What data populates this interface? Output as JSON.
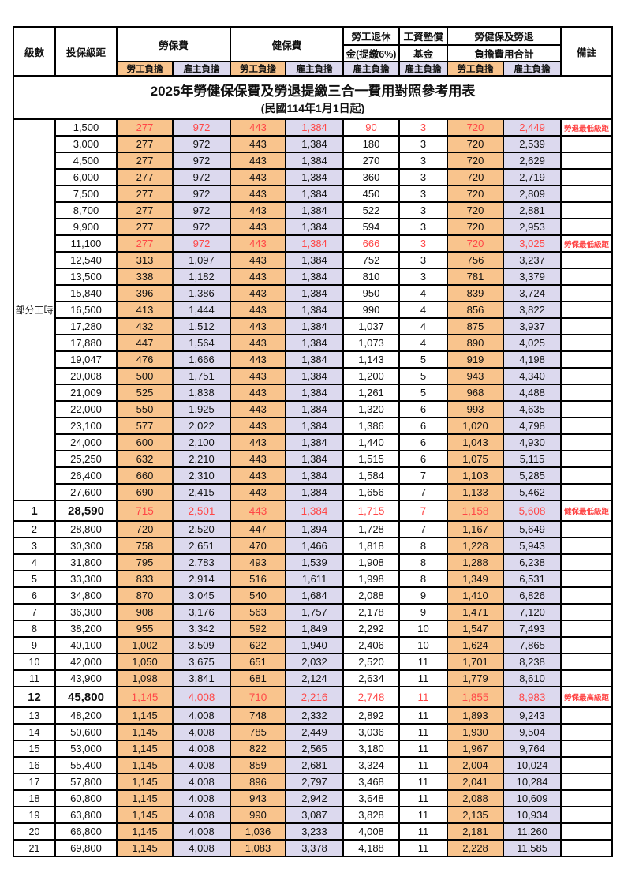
{
  "title": "2025年勞健保保費及勞退提繳三合一費用對照參考用表",
  "subtitle": "(民國114年1月1日起)",
  "headers": {
    "level": "級數",
    "salary": "投保級距",
    "labor_insurance": "勞保費",
    "health_insurance": "健保費",
    "pension_line1": "勞工退休",
    "pension_line2": "金(提繳6%)",
    "wage_fund_line1": "工資墊償",
    "wage_fund_line2": "基金",
    "total_line1": "勞健保及勞退",
    "total_line2": "負擔費用合計",
    "employee": "勞工負擔",
    "employer": "雇主負擔",
    "remark": "備註"
  },
  "part_time_label": "部分工時",
  "colors": {
    "employee_bg": "#F9C48D",
    "employer_bg": "#DCD9EE",
    "highlight_text": "#FF4747",
    "border": "#000000"
  },
  "rows": [
    {
      "level": "",
      "salary": "1,500",
      "labor_emp": "277",
      "labor_er": "972",
      "health_emp": "443",
      "health_er": "1,384",
      "pension_er": "90",
      "fund_er": "3",
      "total_emp": "720",
      "total_er": "2,449",
      "remark": "勞退最低級距",
      "red": true
    },
    {
      "level": "",
      "salary": "3,000",
      "labor_emp": "277",
      "labor_er": "972",
      "health_emp": "443",
      "health_er": "1,384",
      "pension_er": "180",
      "fund_er": "3",
      "total_emp": "720",
      "total_er": "2,539",
      "remark": ""
    },
    {
      "level": "",
      "salary": "4,500",
      "labor_emp": "277",
      "labor_er": "972",
      "health_emp": "443",
      "health_er": "1,384",
      "pension_er": "270",
      "fund_er": "3",
      "total_emp": "720",
      "total_er": "2,629",
      "remark": ""
    },
    {
      "level": "",
      "salary": "6,000",
      "labor_emp": "277",
      "labor_er": "972",
      "health_emp": "443",
      "health_er": "1,384",
      "pension_er": "360",
      "fund_er": "3",
      "total_emp": "720",
      "total_er": "2,719",
      "remark": ""
    },
    {
      "level": "",
      "salary": "7,500",
      "labor_emp": "277",
      "labor_er": "972",
      "health_emp": "443",
      "health_er": "1,384",
      "pension_er": "450",
      "fund_er": "3",
      "total_emp": "720",
      "total_er": "2,809",
      "remark": ""
    },
    {
      "level": "",
      "salary": "8,700",
      "labor_emp": "277",
      "labor_er": "972",
      "health_emp": "443",
      "health_er": "1,384",
      "pension_er": "522",
      "fund_er": "3",
      "total_emp": "720",
      "total_er": "2,881",
      "remark": ""
    },
    {
      "level": "",
      "salary": "9,900",
      "labor_emp": "277",
      "labor_er": "972",
      "health_emp": "443",
      "health_er": "1,384",
      "pension_er": "594",
      "fund_er": "3",
      "total_emp": "720",
      "total_er": "2,953",
      "remark": ""
    },
    {
      "level": "",
      "salary": "11,100",
      "labor_emp": "277",
      "labor_er": "972",
      "health_emp": "443",
      "health_er": "1,384",
      "pension_er": "666",
      "fund_er": "3",
      "total_emp": "720",
      "total_er": "3,025",
      "remark": "勞保最低級距",
      "red": true
    },
    {
      "level": "",
      "salary": "12,540",
      "labor_emp": "313",
      "labor_er": "1,097",
      "health_emp": "443",
      "health_er": "1,384",
      "pension_er": "752",
      "fund_er": "3",
      "total_emp": "756",
      "total_er": "3,237",
      "remark": ""
    },
    {
      "level": "",
      "salary": "13,500",
      "labor_emp": "338",
      "labor_er": "1,182",
      "health_emp": "443",
      "health_er": "1,384",
      "pension_er": "810",
      "fund_er": "3",
      "total_emp": "781",
      "total_er": "3,379",
      "remark": ""
    },
    {
      "level": "",
      "salary": "15,840",
      "labor_emp": "396",
      "labor_er": "1,386",
      "health_emp": "443",
      "health_er": "1,384",
      "pension_er": "950",
      "fund_er": "4",
      "total_emp": "839",
      "total_er": "3,724",
      "remark": ""
    },
    {
      "level": "",
      "salary": "16,500",
      "labor_emp": "413",
      "labor_er": "1,444",
      "health_emp": "443",
      "health_er": "1,384",
      "pension_er": "990",
      "fund_er": "4",
      "total_emp": "856",
      "total_er": "3,822",
      "remark": ""
    },
    {
      "level": "",
      "salary": "17,280",
      "labor_emp": "432",
      "labor_er": "1,512",
      "health_emp": "443",
      "health_er": "1,384",
      "pension_er": "1,037",
      "fund_er": "4",
      "total_emp": "875",
      "total_er": "3,937",
      "remark": ""
    },
    {
      "level": "",
      "salary": "17,880",
      "labor_emp": "447",
      "labor_er": "1,564",
      "health_emp": "443",
      "health_er": "1,384",
      "pension_er": "1,073",
      "fund_er": "4",
      "total_emp": "890",
      "total_er": "4,025",
      "remark": ""
    },
    {
      "level": "",
      "salary": "19,047",
      "labor_emp": "476",
      "labor_er": "1,666",
      "health_emp": "443",
      "health_er": "1,384",
      "pension_er": "1,143",
      "fund_er": "5",
      "total_emp": "919",
      "total_er": "4,198",
      "remark": ""
    },
    {
      "level": "",
      "salary": "20,008",
      "labor_emp": "500",
      "labor_er": "1,751",
      "health_emp": "443",
      "health_er": "1,384",
      "pension_er": "1,200",
      "fund_er": "5",
      "total_emp": "943",
      "total_er": "4,340",
      "remark": ""
    },
    {
      "level": "",
      "salary": "21,009",
      "labor_emp": "525",
      "labor_er": "1,838",
      "health_emp": "443",
      "health_er": "1,384",
      "pension_er": "1,261",
      "fund_er": "5",
      "total_emp": "968",
      "total_er": "4,488",
      "remark": ""
    },
    {
      "level": "",
      "salary": "22,000",
      "labor_emp": "550",
      "labor_er": "1,925",
      "health_emp": "443",
      "health_er": "1,384",
      "pension_er": "1,320",
      "fund_er": "6",
      "total_emp": "993",
      "total_er": "4,635",
      "remark": ""
    },
    {
      "level": "",
      "salary": "23,100",
      "labor_emp": "577",
      "labor_er": "2,022",
      "health_emp": "443",
      "health_er": "1,384",
      "pension_er": "1,386",
      "fund_er": "6",
      "total_emp": "1,020",
      "total_er": "4,798",
      "remark": ""
    },
    {
      "level": "",
      "salary": "24,000",
      "labor_emp": "600",
      "labor_er": "2,100",
      "health_emp": "443",
      "health_er": "1,384",
      "pension_er": "1,440",
      "fund_er": "6",
      "total_emp": "1,043",
      "total_er": "4,930",
      "remark": ""
    },
    {
      "level": "",
      "salary": "25,250",
      "labor_emp": "632",
      "labor_er": "2,210",
      "health_emp": "443",
      "health_er": "1,384",
      "pension_er": "1,515",
      "fund_er": "6",
      "total_emp": "1,075",
      "total_er": "5,115",
      "remark": ""
    },
    {
      "level": "",
      "salary": "26,400",
      "labor_emp": "660",
      "labor_er": "2,310",
      "health_emp": "443",
      "health_er": "1,384",
      "pension_er": "1,584",
      "fund_er": "7",
      "total_emp": "1,103",
      "total_er": "5,285",
      "remark": ""
    },
    {
      "level": "",
      "salary": "27,600",
      "labor_emp": "690",
      "labor_er": "2,415",
      "health_emp": "443",
      "health_er": "1,384",
      "pension_er": "1,656",
      "fund_er": "7",
      "total_emp": "1,133",
      "total_er": "5,462",
      "remark": ""
    },
    {
      "level": "1",
      "salary": "28,590",
      "labor_emp": "715",
      "labor_er": "2,501",
      "health_emp": "443",
      "health_er": "1,384",
      "pension_er": "1,715",
      "fund_er": "7",
      "total_emp": "1,158",
      "total_er": "5,608",
      "remark": "健保最低級距",
      "red": true,
      "big": true
    },
    {
      "level": "2",
      "salary": "28,800",
      "labor_emp": "720",
      "labor_er": "2,520",
      "health_emp": "447",
      "health_er": "1,394",
      "pension_er": "1,728",
      "fund_er": "7",
      "total_emp": "1,167",
      "total_er": "5,649",
      "remark": ""
    },
    {
      "level": "3",
      "salary": "30,300",
      "labor_emp": "758",
      "labor_er": "2,651",
      "health_emp": "470",
      "health_er": "1,466",
      "pension_er": "1,818",
      "fund_er": "8",
      "total_emp": "1,228",
      "total_er": "5,943",
      "remark": ""
    },
    {
      "level": "4",
      "salary": "31,800",
      "labor_emp": "795",
      "labor_er": "2,783",
      "health_emp": "493",
      "health_er": "1,539",
      "pension_er": "1,908",
      "fund_er": "8",
      "total_emp": "1,288",
      "total_er": "6,238",
      "remark": ""
    },
    {
      "level": "5",
      "salary": "33,300",
      "labor_emp": "833",
      "labor_er": "2,914",
      "health_emp": "516",
      "health_er": "1,611",
      "pension_er": "1,998",
      "fund_er": "8",
      "total_emp": "1,349",
      "total_er": "6,531",
      "remark": ""
    },
    {
      "level": "6",
      "salary": "34,800",
      "labor_emp": "870",
      "labor_er": "3,045",
      "health_emp": "540",
      "health_er": "1,684",
      "pension_er": "2,088",
      "fund_er": "9",
      "total_emp": "1,410",
      "total_er": "6,826",
      "remark": ""
    },
    {
      "level": "7",
      "salary": "36,300",
      "labor_emp": "908",
      "labor_er": "3,176",
      "health_emp": "563",
      "health_er": "1,757",
      "pension_er": "2,178",
      "fund_er": "9",
      "total_emp": "1,471",
      "total_er": "7,120",
      "remark": ""
    },
    {
      "level": "8",
      "salary": "38,200",
      "labor_emp": "955",
      "labor_er": "3,342",
      "health_emp": "592",
      "health_er": "1,849",
      "pension_er": "2,292",
      "fund_er": "10",
      "total_emp": "1,547",
      "total_er": "7,493",
      "remark": ""
    },
    {
      "level": "9",
      "salary": "40,100",
      "labor_emp": "1,002",
      "labor_er": "3,509",
      "health_emp": "622",
      "health_er": "1,940",
      "pension_er": "2,406",
      "fund_er": "10",
      "total_emp": "1,624",
      "total_er": "7,865",
      "remark": ""
    },
    {
      "level": "10",
      "salary": "42,000",
      "labor_emp": "1,050",
      "labor_er": "3,675",
      "health_emp": "651",
      "health_er": "2,032",
      "pension_er": "2,520",
      "fund_er": "11",
      "total_emp": "1,701",
      "total_er": "8,238",
      "remark": ""
    },
    {
      "level": "11",
      "salary": "43,900",
      "labor_emp": "1,098",
      "labor_er": "3,841",
      "health_emp": "681",
      "health_er": "2,124",
      "pension_er": "2,634",
      "fund_er": "11",
      "total_emp": "1,779",
      "total_er": "8,610",
      "remark": ""
    },
    {
      "level": "12",
      "salary": "45,800",
      "labor_emp": "1,145",
      "labor_er": "4,008",
      "health_emp": "710",
      "health_er": "2,216",
      "pension_er": "2,748",
      "fund_er": "11",
      "total_emp": "1,855",
      "total_er": "8,983",
      "remark": "勞保最高級距",
      "red": true,
      "big": true
    },
    {
      "level": "13",
      "salary": "48,200",
      "labor_emp": "1,145",
      "labor_er": "4,008",
      "health_emp": "748",
      "health_er": "2,332",
      "pension_er": "2,892",
      "fund_er": "11",
      "total_emp": "1,893",
      "total_er": "9,243",
      "remark": ""
    },
    {
      "level": "14",
      "salary": "50,600",
      "labor_emp": "1,145",
      "labor_er": "4,008",
      "health_emp": "785",
      "health_er": "2,449",
      "pension_er": "3,036",
      "fund_er": "11",
      "total_emp": "1,930",
      "total_er": "9,504",
      "remark": ""
    },
    {
      "level": "15",
      "salary": "53,000",
      "labor_emp": "1,145",
      "labor_er": "4,008",
      "health_emp": "822",
      "health_er": "2,565",
      "pension_er": "3,180",
      "fund_er": "11",
      "total_emp": "1,967",
      "total_er": "9,764",
      "remark": ""
    },
    {
      "level": "16",
      "salary": "55,400",
      "labor_emp": "1,145",
      "labor_er": "4,008",
      "health_emp": "859",
      "health_er": "2,681",
      "pension_er": "3,324",
      "fund_er": "11",
      "total_emp": "2,004",
      "total_er": "10,024",
      "remark": ""
    },
    {
      "level": "17",
      "salary": "57,800",
      "labor_emp": "1,145",
      "labor_er": "4,008",
      "health_emp": "896",
      "health_er": "2,797",
      "pension_er": "3,468",
      "fund_er": "11",
      "total_emp": "2,041",
      "total_er": "10,284",
      "remark": ""
    },
    {
      "level": "18",
      "salary": "60,800",
      "labor_emp": "1,145",
      "labor_er": "4,008",
      "health_emp": "943",
      "health_er": "2,942",
      "pension_er": "3,648",
      "fund_er": "11",
      "total_emp": "2,088",
      "total_er": "10,609",
      "remark": ""
    },
    {
      "level": "19",
      "salary": "63,800",
      "labor_emp": "1,145",
      "labor_er": "4,008",
      "health_emp": "990",
      "health_er": "3,087",
      "pension_er": "3,828",
      "fund_er": "11",
      "total_emp": "2,135",
      "total_er": "10,934",
      "remark": ""
    },
    {
      "level": "20",
      "salary": "66,800",
      "labor_emp": "1,145",
      "labor_er": "4,008",
      "health_emp": "1,036",
      "health_er": "3,233",
      "pension_er": "4,008",
      "fund_er": "11",
      "total_emp": "2,181",
      "total_er": "11,260",
      "remark": ""
    },
    {
      "level": "21",
      "salary": "69,800",
      "labor_emp": "1,145",
      "labor_er": "4,008",
      "health_emp": "1,083",
      "health_er": "3,378",
      "pension_er": "4,188",
      "fund_er": "11",
      "total_emp": "2,228",
      "total_er": "11,585",
      "remark": ""
    }
  ]
}
